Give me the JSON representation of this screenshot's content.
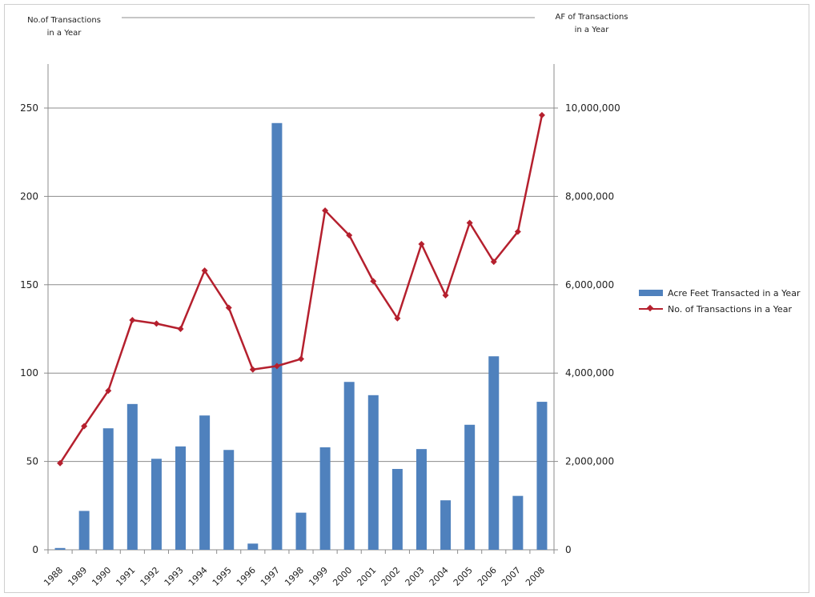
{
  "chart_data": {
    "type": "bar",
    "categories": [
      "1988",
      "1989",
      "1990",
      "1991",
      "1992",
      "1993",
      "1994",
      "1995",
      "1996",
      "1997",
      "1998",
      "1999",
      "2000",
      "2001",
      "2002",
      "2003",
      "2004",
      "2005",
      "2006",
      "2007",
      "2008"
    ],
    "series": [
      {
        "name": "Acre Feet Transacted in a Year",
        "type": "bar",
        "axis": "right",
        "color": "#4f81bd",
        "values": [
          40000,
          880000,
          2750000,
          3300000,
          2060000,
          2340000,
          3040000,
          2260000,
          140000,
          9660000,
          840000,
          2320000,
          3800000,
          3500000,
          1830000,
          2280000,
          1120000,
          2830000,
          4380000,
          1220000,
          3350000
        ]
      },
      {
        "name": "No. of Transactions in a Year",
        "type": "line",
        "axis": "left",
        "color": "#b5202e",
        "values": [
          49,
          70,
          90,
          130,
          128,
          125,
          158,
          137,
          102,
          104,
          108,
          192,
          178,
          152,
          131,
          173,
          144,
          185,
          163,
          180,
          246
        ]
      }
    ],
    "left_axis": {
      "title_line1": "No.of Transactions",
      "title_line2": "in a Year",
      "ylim": [
        0,
        250
      ],
      "ticks": [
        0,
        50,
        100,
        150,
        200,
        250
      ],
      "tick_labels": [
        "0",
        "50",
        "100",
        "150",
        "200",
        "250"
      ]
    },
    "right_axis": {
      "title_line1": "AF of Transactions",
      "title_line2": "in a Year",
      "ylim": [
        0,
        10000000
      ],
      "ticks": [
        0,
        2000000,
        4000000,
        6000000,
        8000000,
        10000000
      ],
      "tick_labels": [
        "0",
        "2,000,000",
        "4,000,000",
        "6,000,000",
        "8,000,000",
        "10,000,000"
      ]
    },
    "grid": true,
    "legend_position": "right"
  },
  "legend": {
    "bar_label": "Acre Feet Transacted in a Year",
    "line_label": "No. of Transactions  in a Year",
    "bar_color": "#4f81bd",
    "line_color": "#b5202e"
  }
}
